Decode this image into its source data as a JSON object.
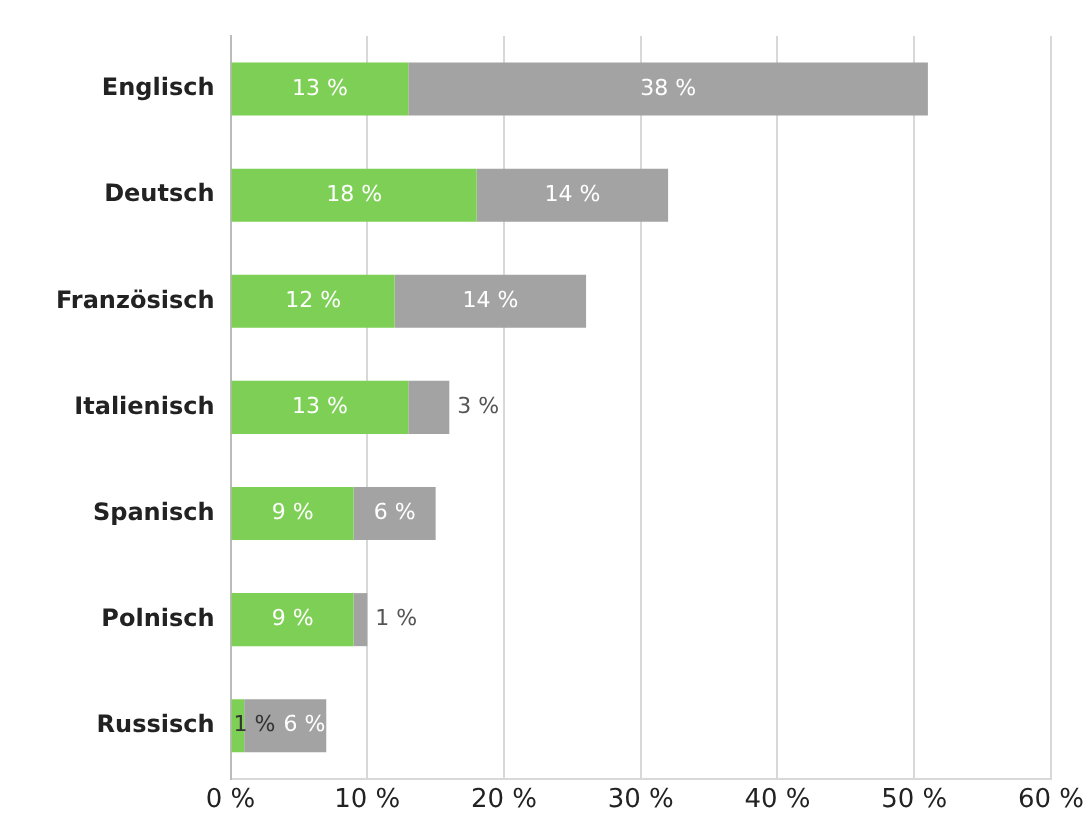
{
  "chart_data": {
    "type": "bar",
    "orientation": "horizontal",
    "stacked": true,
    "categories": [
      "Englisch",
      "Deutsch",
      "Französisch",
      "Italienisch",
      "Spanisch",
      "Polnisch",
      "Russisch"
    ],
    "series": [
      {
        "color": "#7dd055",
        "values": [
          13,
          18,
          12,
          13,
          9,
          9,
          1
        ],
        "value_labels": [
          "13 %",
          "18 %",
          "12 %",
          "13 %",
          "9 %",
          "9 %",
          "1 %"
        ]
      },
      {
        "color": "#a3a3a3",
        "values": [
          38,
          14,
          14,
          3,
          6,
          1,
          6
        ],
        "value_labels": [
          "38 %",
          "14 %",
          "14 %",
          "3 %",
          "6 %",
          "1 %",
          "6 %"
        ]
      }
    ],
    "xlim": [
      0,
      60
    ],
    "xticks": [
      {
        "value": 0,
        "label": "0 %"
      },
      {
        "value": 10,
        "label": "10 %"
      },
      {
        "value": 20,
        "label": "20 %"
      },
      {
        "value": 30,
        "label": "30 %"
      },
      {
        "value": 40,
        "label": "40 %"
      },
      {
        "value": 50,
        "label": "50 %"
      },
      {
        "value": 60,
        "label": "60 %"
      }
    ],
    "grid": "x",
    "legend": false
  }
}
